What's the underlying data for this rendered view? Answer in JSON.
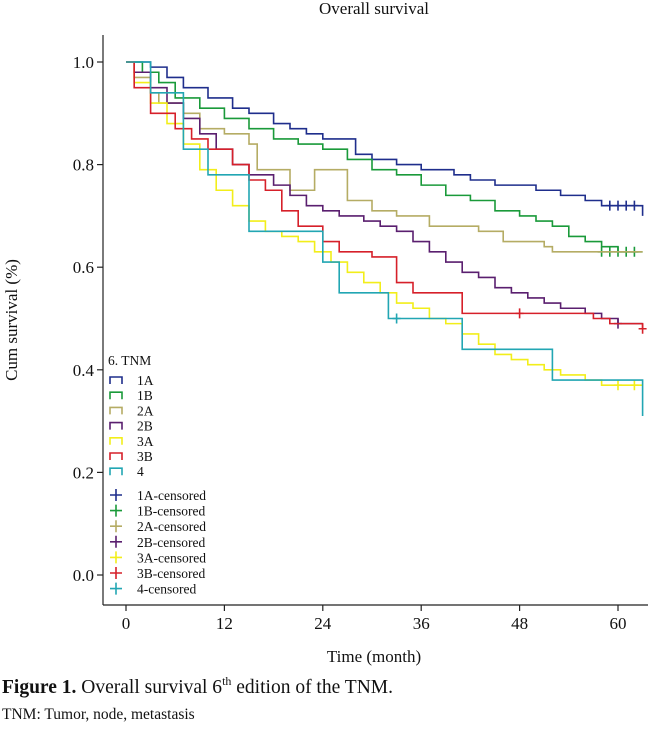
{
  "chart_data": {
    "type": "line",
    "subtype": "kaplan-meier-step",
    "title": "Overall survival",
    "xlabel": "Time (month)",
    "ylabel": "Cum survival (%)",
    "xlim": [
      -3,
      64
    ],
    "ylim": [
      -0.04,
      1.06
    ],
    "xticks": [
      0,
      12,
      24,
      36,
      48,
      60
    ],
    "yticks": [
      0.0,
      0.2,
      0.4,
      0.6,
      0.8,
      1.0
    ],
    "ytick_labels": [
      "0.0",
      "0.2",
      "0.4",
      "0.6",
      "0.8",
      "1.0"
    ],
    "grid": false,
    "legend_title": "6. TNM",
    "legend_position": "bottom-left",
    "series": [
      {
        "name": "1A",
        "color": "#1f2e8c",
        "points": [
          [
            0,
            1.0
          ],
          [
            3,
            0.99
          ],
          [
            5,
            0.97
          ],
          [
            7,
            0.95
          ],
          [
            10,
            0.93
          ],
          [
            13,
            0.91
          ],
          [
            15,
            0.9
          ],
          [
            18,
            0.88
          ],
          [
            20,
            0.87
          ],
          [
            22,
            0.86
          ],
          [
            24,
            0.85
          ],
          [
            28,
            0.82
          ],
          [
            30,
            0.81
          ],
          [
            33,
            0.8
          ],
          [
            36,
            0.79
          ],
          [
            40,
            0.78
          ],
          [
            42,
            0.77
          ],
          [
            45,
            0.76
          ],
          [
            50,
            0.75
          ],
          [
            53,
            0.74
          ],
          [
            56,
            0.73
          ],
          [
            58,
            0.72
          ],
          [
            62,
            0.72
          ],
          [
            63,
            0.7
          ]
        ],
        "censored": [
          [
            59,
            0.72
          ],
          [
            60,
            0.72
          ],
          [
            61,
            0.72
          ],
          [
            62,
            0.72
          ]
        ]
      },
      {
        "name": "1B",
        "color": "#1a9a3a",
        "points": [
          [
            0,
            1.0
          ],
          [
            2,
            0.98
          ],
          [
            4,
            0.96
          ],
          [
            6,
            0.93
          ],
          [
            9,
            0.91
          ],
          [
            12,
            0.89
          ],
          [
            15,
            0.87
          ],
          [
            18,
            0.85
          ],
          [
            21,
            0.84
          ],
          [
            24,
            0.83
          ],
          [
            27,
            0.81
          ],
          [
            30,
            0.79
          ],
          [
            33,
            0.78
          ],
          [
            36,
            0.76
          ],
          [
            39,
            0.74
          ],
          [
            42,
            0.73
          ],
          [
            45,
            0.71
          ],
          [
            48,
            0.7
          ],
          [
            50,
            0.69
          ],
          [
            52,
            0.68
          ],
          [
            54,
            0.66
          ],
          [
            56,
            0.65
          ],
          [
            58,
            0.64
          ],
          [
            60,
            0.63
          ],
          [
            63,
            0.63
          ]
        ],
        "censored": [
          [
            58,
            0.63
          ],
          [
            59,
            0.63
          ],
          [
            60,
            0.63
          ],
          [
            61,
            0.63
          ],
          [
            62,
            0.63
          ]
        ]
      },
      {
        "name": "2A",
        "color": "#b5ac64",
        "points": [
          [
            0,
            1.0
          ],
          [
            1,
            0.97
          ],
          [
            3,
            0.94
          ],
          [
            4,
            0.92
          ],
          [
            7,
            0.9
          ],
          [
            9,
            0.87
          ],
          [
            12,
            0.86
          ],
          [
            15,
            0.84
          ],
          [
            16,
            0.79
          ],
          [
            20,
            0.75
          ],
          [
            23,
            0.79
          ],
          [
            27,
            0.73
          ],
          [
            30,
            0.71
          ],
          [
            33,
            0.7
          ],
          [
            37,
            0.68
          ],
          [
            43,
            0.67
          ],
          [
            46,
            0.65
          ],
          [
            51,
            0.64
          ],
          [
            52,
            0.63
          ],
          [
            63,
            0.63
          ]
        ],
        "censored": []
      },
      {
        "name": "2B",
        "color": "#5a1f6f",
        "points": [
          [
            0,
            1.0
          ],
          [
            1,
            0.98
          ],
          [
            3,
            0.95
          ],
          [
            5,
            0.92
          ],
          [
            7,
            0.89
          ],
          [
            9,
            0.86
          ],
          [
            11,
            0.83
          ],
          [
            13,
            0.8
          ],
          [
            15,
            0.78
          ],
          [
            18,
            0.76
          ],
          [
            20,
            0.74
          ],
          [
            22,
            0.72
          ],
          [
            24,
            0.71
          ],
          [
            26,
            0.7
          ],
          [
            29,
            0.69
          ],
          [
            31,
            0.68
          ],
          [
            33,
            0.67
          ],
          [
            35,
            0.65
          ],
          [
            37,
            0.63
          ],
          [
            39,
            0.61
          ],
          [
            41,
            0.59
          ],
          [
            43,
            0.58
          ],
          [
            45,
            0.56
          ],
          [
            47,
            0.55
          ],
          [
            49,
            0.54
          ],
          [
            51,
            0.53
          ],
          [
            53,
            0.52
          ],
          [
            56,
            0.51
          ],
          [
            58,
            0.5
          ],
          [
            60,
            0.49
          ],
          [
            63,
            0.49
          ]
        ],
        "censored": [
          [
            60,
            0.49
          ]
        ]
      },
      {
        "name": "3A",
        "color": "#f2ee1a",
        "points": [
          [
            0,
            1.0
          ],
          [
            1,
            0.96
          ],
          [
            3,
            0.92
          ],
          [
            5,
            0.88
          ],
          [
            7,
            0.84
          ],
          [
            9,
            0.79
          ],
          [
            11,
            0.75
          ],
          [
            13,
            0.72
          ],
          [
            15,
            0.69
          ],
          [
            17,
            0.67
          ],
          [
            19,
            0.66
          ],
          [
            21,
            0.65
          ],
          [
            23,
            0.63
          ],
          [
            25,
            0.61
          ],
          [
            27,
            0.59
          ],
          [
            29,
            0.57
          ],
          [
            31,
            0.55
          ],
          [
            33,
            0.53
          ],
          [
            35,
            0.52
          ],
          [
            37,
            0.5
          ],
          [
            39,
            0.49
          ],
          [
            41,
            0.47
          ],
          [
            43,
            0.45
          ],
          [
            45,
            0.43
          ],
          [
            47,
            0.42
          ],
          [
            49,
            0.41
          ],
          [
            51,
            0.4
          ],
          [
            53,
            0.39
          ],
          [
            56,
            0.38
          ],
          [
            58,
            0.37
          ],
          [
            60,
            0.37
          ],
          [
            63,
            0.37
          ]
        ],
        "censored": [
          [
            60,
            0.37
          ],
          [
            62,
            0.37
          ]
        ]
      },
      {
        "name": "3B",
        "color": "#d6202a",
        "points": [
          [
            0,
            1.0
          ],
          [
            1,
            0.95
          ],
          [
            3,
            0.9
          ],
          [
            6,
            0.87
          ],
          [
            8,
            0.85
          ],
          [
            10,
            0.83
          ],
          [
            13,
            0.8
          ],
          [
            15,
            0.77
          ],
          [
            17,
            0.75
          ],
          [
            19,
            0.71
          ],
          [
            21,
            0.68
          ],
          [
            24,
            0.65
          ],
          [
            26,
            0.63
          ],
          [
            30,
            0.62
          ],
          [
            33,
            0.57
          ],
          [
            35,
            0.55
          ],
          [
            41,
            0.51
          ],
          [
            57,
            0.5
          ],
          [
            59,
            0.49
          ],
          [
            63,
            0.48
          ]
        ],
        "censored": [
          [
            48,
            0.51
          ],
          [
            63,
            0.48
          ]
        ]
      },
      {
        "name": "4",
        "color": "#22a6b3",
        "points": [
          [
            0,
            1.0
          ],
          [
            3,
            0.94
          ],
          [
            7,
            0.83
          ],
          [
            10,
            0.78
          ],
          [
            15,
            0.67
          ],
          [
            24,
            0.61
          ],
          [
            26,
            0.55
          ],
          [
            32,
            0.5
          ],
          [
            41,
            0.44
          ],
          [
            52,
            0.38
          ],
          [
            63,
            0.31
          ]
        ],
        "censored": [
          [
            33,
            0.5
          ]
        ]
      }
    ],
    "censored_legend": [
      "1A-censored",
      "1B-censored",
      "2A-censored",
      "2B-censored",
      "3A-censored",
      "3B-censored",
      "4-censored"
    ]
  },
  "caption": {
    "label": "Figure 1.",
    "text_before_sup": "Overall survival 6",
    "sup": "th",
    "text_after_sup": " edition of the TNM.",
    "note": "TNM: Tumor, node, metastasis"
  }
}
